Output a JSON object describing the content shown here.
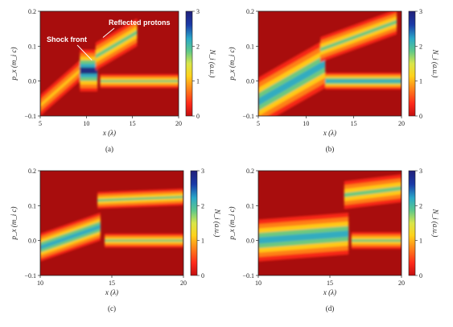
{
  "colors": {
    "background": "#a80d0d",
    "colormap": [
      "#c20e0e",
      "#ff2a1a",
      "#ff8a1a",
      "#ffd21a",
      "#d8e64a",
      "#5ec88a",
      "#2aa8c8",
      "#1a3aa8",
      "#22207a"
    ]
  },
  "colorbar": {
    "label": "N_i (a.u.)",
    "ticks": [
      "0",
      "1",
      "2",
      "3"
    ],
    "range": [
      0,
      3
    ]
  },
  "annotations": {
    "shock_front": "Shock front",
    "reflected_protons": "Reflected protons"
  },
  "chart_data": [
    {
      "type": "heatmap",
      "panel": "(a)",
      "xlabel": "x (λ)",
      "ylabel": "p_x (m_i c)",
      "xlim": [
        5,
        20
      ],
      "ylim": [
        -0.1,
        0.2
      ],
      "xticks": [
        "5",
        "10",
        "15",
        "20"
      ],
      "yticks": [
        "−0.1",
        "0.0",
        "0.1",
        "0.2"
      ],
      "features": [
        {
          "name": "upstream",
          "x": [
            11.5,
            20
          ],
          "y_center": 0.0,
          "halfwidth": 0.01,
          "n": 2.2
        },
        {
          "name": "ramp",
          "x": [
            5,
            9.3
          ],
          "y": [
            -0.07,
            0.03
          ],
          "halfwidth": 0.015,
          "n": 1.4
        },
        {
          "name": "shock core",
          "x": [
            9.3,
            11.2
          ],
          "y_center": 0.03,
          "halfwidth": 0.03,
          "n": 2.8
        },
        {
          "name": "reflected beam",
          "x": [
            11,
            15.5
          ],
          "y": [
            0.07,
            0.14
          ],
          "halfwidth": 0.02,
          "n": 1.8
        }
      ]
    },
    {
      "type": "heatmap",
      "panel": "(b)",
      "xlabel": "x (λ)",
      "ylabel": "p_x (m_i c)",
      "xlim": [
        5,
        20
      ],
      "ylim": [
        -0.1,
        0.2
      ],
      "xticks": [
        "5",
        "10",
        "15",
        "20"
      ],
      "yticks": [
        "−0.1",
        "0.0",
        "0.1",
        "0.2"
      ],
      "features": [
        {
          "name": "upstream",
          "x": [
            12,
            20
          ],
          "y_center": 0.0,
          "halfwidth": 0.012,
          "n": 2.3
        },
        {
          "name": "downstream wedge",
          "x": [
            5,
            12
          ],
          "y": [
            -0.06,
            0.05
          ],
          "halfwidth": 0.035,
          "n": 2.6
        },
        {
          "name": "reflected beam",
          "x": [
            11.5,
            19.5
          ],
          "y": [
            0.09,
            0.17
          ],
          "halfwidth": 0.018,
          "n": 1.9
        }
      ]
    },
    {
      "type": "heatmap",
      "panel": "(c)",
      "xlabel": "x (λ)",
      "ylabel": "p_x (m_i c)",
      "xlim": [
        10,
        20
      ],
      "ylim": [
        -0.1,
        0.2
      ],
      "xticks": [
        "10",
        "15",
        "20"
      ],
      "yticks": [
        "−0.1",
        "0.0",
        "0.1",
        "0.2"
      ],
      "features": [
        {
          "name": "upstream",
          "x": [
            14.5,
            20
          ],
          "y_center": 0.0,
          "halfwidth": 0.01,
          "n": 2.2
        },
        {
          "name": "downstream",
          "x": [
            10,
            14.2
          ],
          "y": [
            -0.02,
            0.04
          ],
          "halfwidth": 0.02,
          "n": 2.6
        },
        {
          "name": "reflected band",
          "x": [
            14,
            20
          ],
          "y": [
            0.115,
            0.125
          ],
          "halfwidth": 0.012,
          "n": 1.8
        }
      ]
    },
    {
      "type": "heatmap",
      "panel": "(d)",
      "xlabel": "x (λ)",
      "ylabel": "p_x (m_i c)",
      "xlim": [
        10,
        20
      ],
      "ylim": [
        -0.1,
        0.2
      ],
      "xticks": [
        "10",
        "15",
        "20"
      ],
      "yticks": [
        "−0.1",
        "0.0",
        "0.1",
        "0.2"
      ],
      "features": [
        {
          "name": "upstream",
          "x": [
            16.5,
            20
          ],
          "y_center": 0.0,
          "halfwidth": 0.012,
          "n": 2.2
        },
        {
          "name": "downstream",
          "x": [
            10,
            16.3
          ],
          "y": [
            0.0,
            0.02
          ],
          "halfwidth": 0.03,
          "n": 2.7
        },
        {
          "name": "reflected band",
          "x": [
            16,
            20
          ],
          "y": [
            0.13,
            0.15
          ],
          "halfwidth": 0.02,
          "n": 1.8
        }
      ]
    }
  ]
}
